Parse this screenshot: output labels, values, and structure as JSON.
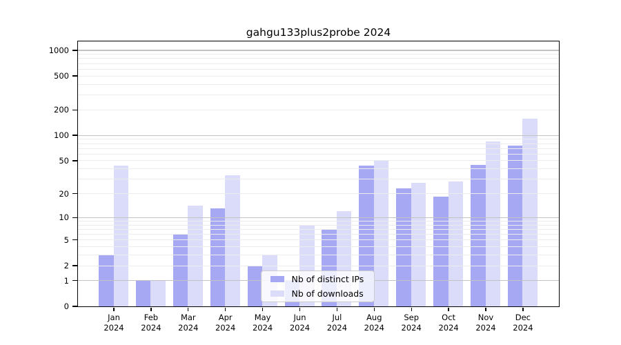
{
  "page": {
    "background": "#ffffff",
    "axis_color": "#000000"
  },
  "chart_data": {
    "type": "bar",
    "title": "gahgu133plus2probe 2024",
    "categories": [
      "Jan",
      "Feb",
      "Mar",
      "Apr",
      "May",
      "Jun",
      "Jul",
      "Aug",
      "Sep",
      "Oct",
      "Nov",
      "Dec"
    ],
    "x_tick_second_line": "2024",
    "series": [
      {
        "name": "Nb of distinct IPs",
        "color": "#a6a8f3",
        "values": [
          3,
          1,
          6,
          13,
          2,
          1,
          7,
          43,
          23,
          18,
          44,
          75
        ]
      },
      {
        "name": "Nb of downloads",
        "color": "#dbdcf9",
        "values": [
          43,
          1,
          14,
          33,
          3,
          8,
          12,
          49,
          27,
          28,
          84,
          155
        ]
      }
    ],
    "xlabel": "",
    "ylabel": "",
    "y_axis": {
      "scale": "log1p",
      "tick_values": [
        0,
        1,
        2,
        5,
        10,
        20,
        50,
        100,
        200,
        500,
        1000
      ],
      "tick_labels": [
        "0",
        "1",
        "2",
        "5",
        "10",
        "20",
        "50",
        "100",
        "200",
        "500",
        "1000"
      ],
      "major_gridline_values": [
        1,
        10,
        100,
        1000
      ],
      "minor_gridline_values": [
        2,
        3,
        4,
        5,
        6,
        7,
        8,
        9,
        20,
        30,
        40,
        50,
        60,
        70,
        80,
        90,
        200,
        300,
        400,
        500,
        600,
        700,
        800,
        900
      ],
      "ylim": [
        0,
        1170
      ]
    },
    "grid": "on",
    "gridline_colors": {
      "major": "#c2c2c2",
      "minor": "#ececec"
    },
    "legend": {
      "position": "lower center inside"
    }
  }
}
